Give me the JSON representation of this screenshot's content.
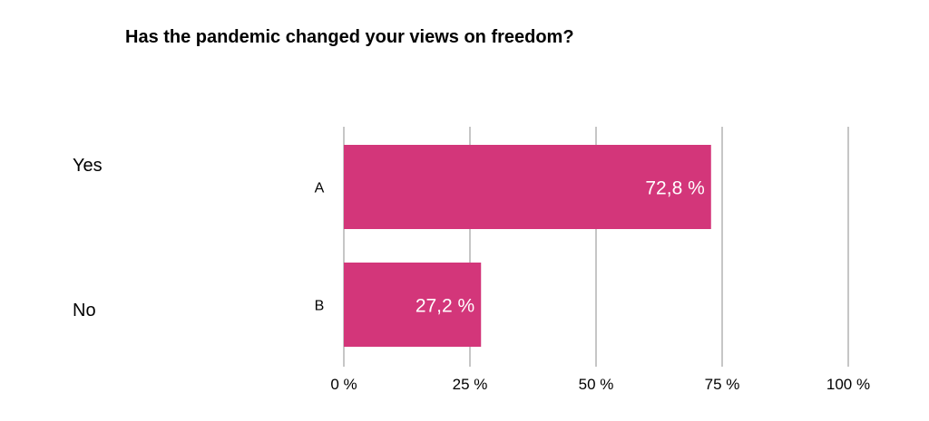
{
  "chart_data": {
    "type": "bar",
    "orientation": "horizontal",
    "title": "Has the pandemic changed your views on freedom?",
    "answers": [
      "Yes",
      "No"
    ],
    "categories": [
      "A",
      "B"
    ],
    "values": [
      72.8,
      27.2
    ],
    "value_labels": [
      "72,8 %",
      "27,2 %"
    ],
    "xticks": [
      {
        "value": 0,
        "label": "0 %"
      },
      {
        "value": 25,
        "label": "25 %"
      },
      {
        "value": 50,
        "label": "50 %"
      },
      {
        "value": 75,
        "label": "75 %"
      },
      {
        "value": 100,
        "label": "100 %"
      }
    ],
    "xlim": [
      0,
      100
    ],
    "grid": true,
    "bar_color": "#d3367a",
    "grid_color": "#c6c6c6"
  }
}
